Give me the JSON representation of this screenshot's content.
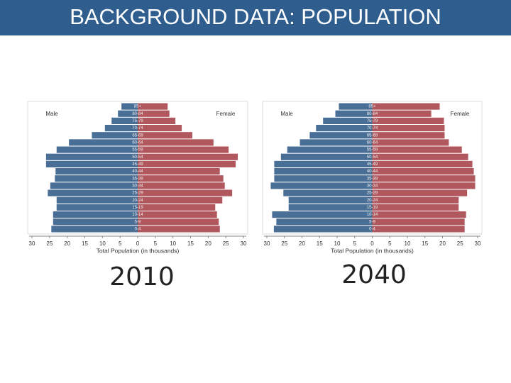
{
  "title": "BACKGROUND DATA: POPULATION",
  "chart_data": [
    {
      "type": "pyramid",
      "title": "2010",
      "x_label": "Total Population (in thousands)",
      "categories": [
        "0-4",
        "5-9",
        "10-14",
        "15-19",
        "20-24",
        "25-29",
        "30-34",
        "35-39",
        "40-44",
        "45-49",
        "50-54",
        "55-59",
        "60-64",
        "65-69",
        "70-74",
        "75-79",
        "80-84",
        "85+"
      ],
      "series": [
        {
          "name": "Male",
          "color": "#4a6f97",
          "values": [
            24.5,
            24,
            24,
            23,
            23,
            25.5,
            24.8,
            23.5,
            23.3,
            26,
            26,
            23,
            19.5,
            13,
            9.3,
            7.4,
            5.6,
            4.6
          ]
        },
        {
          "name": "Female",
          "color": "#b1585f",
          "values": [
            23.3,
            23,
            22.5,
            22,
            24,
            26.8,
            24.7,
            24.3,
            23.3,
            27.8,
            28.4,
            25.8,
            21.5,
            15.5,
            12.5,
            10.7,
            9,
            8.5
          ]
        }
      ],
      "xlim": [
        -30,
        30
      ],
      "xticks": [
        {
          "value": -30,
          "label": "30"
        },
        {
          "value": -25,
          "label": "25"
        },
        {
          "value": -20,
          "label": "20"
        },
        {
          "value": -15,
          "label": "15"
        },
        {
          "value": -10,
          "label": "10"
        },
        {
          "value": -5,
          "label": "5"
        },
        0,
        5,
        10,
        15,
        20,
        25,
        30
      ]
    },
    {
      "type": "pyramid",
      "title": "2040",
      "x_label": "Total Population (in thousands)",
      "categories": [
        "0-4",
        "5-9",
        "10-14",
        "15-19",
        "20-24",
        "25-29",
        "30-34",
        "35-39",
        "40-44",
        "45-49",
        "50-54",
        "55-59",
        "60-64",
        "65-69",
        "70-74",
        "75-79",
        "80-84",
        "85+"
      ],
      "series": [
        {
          "name": "Male",
          "color": "#4a6f97",
          "values": [
            28,
            27.3,
            28.5,
            23.8,
            23.8,
            25.3,
            28.9,
            27.9,
            27.9,
            27.9,
            26,
            24.2,
            20.6,
            17.8,
            16,
            14,
            10.5,
            9.5
          ]
        },
        {
          "name": "Female",
          "color": "#b1585f",
          "values": [
            26.3,
            26.3,
            26.7,
            24.6,
            24.6,
            27,
            29.3,
            29.3,
            28.9,
            28.5,
            27.3,
            25.5,
            21.8,
            20.6,
            20.6,
            20.4,
            16.8,
            19.2
          ]
        }
      ],
      "xlim": [
        -30,
        30
      ],
      "xticks": [
        {
          "value": -30,
          "label": "30"
        },
        {
          "value": -25,
          "label": "25"
        },
        {
          "value": -20,
          "label": "20"
        },
        {
          "value": -15,
          "label": "15"
        },
        {
          "value": -10,
          "label": "10"
        },
        {
          "value": -5,
          "label": "5"
        },
        0,
        5,
        10,
        15,
        20,
        25,
        30
      ]
    }
  ]
}
